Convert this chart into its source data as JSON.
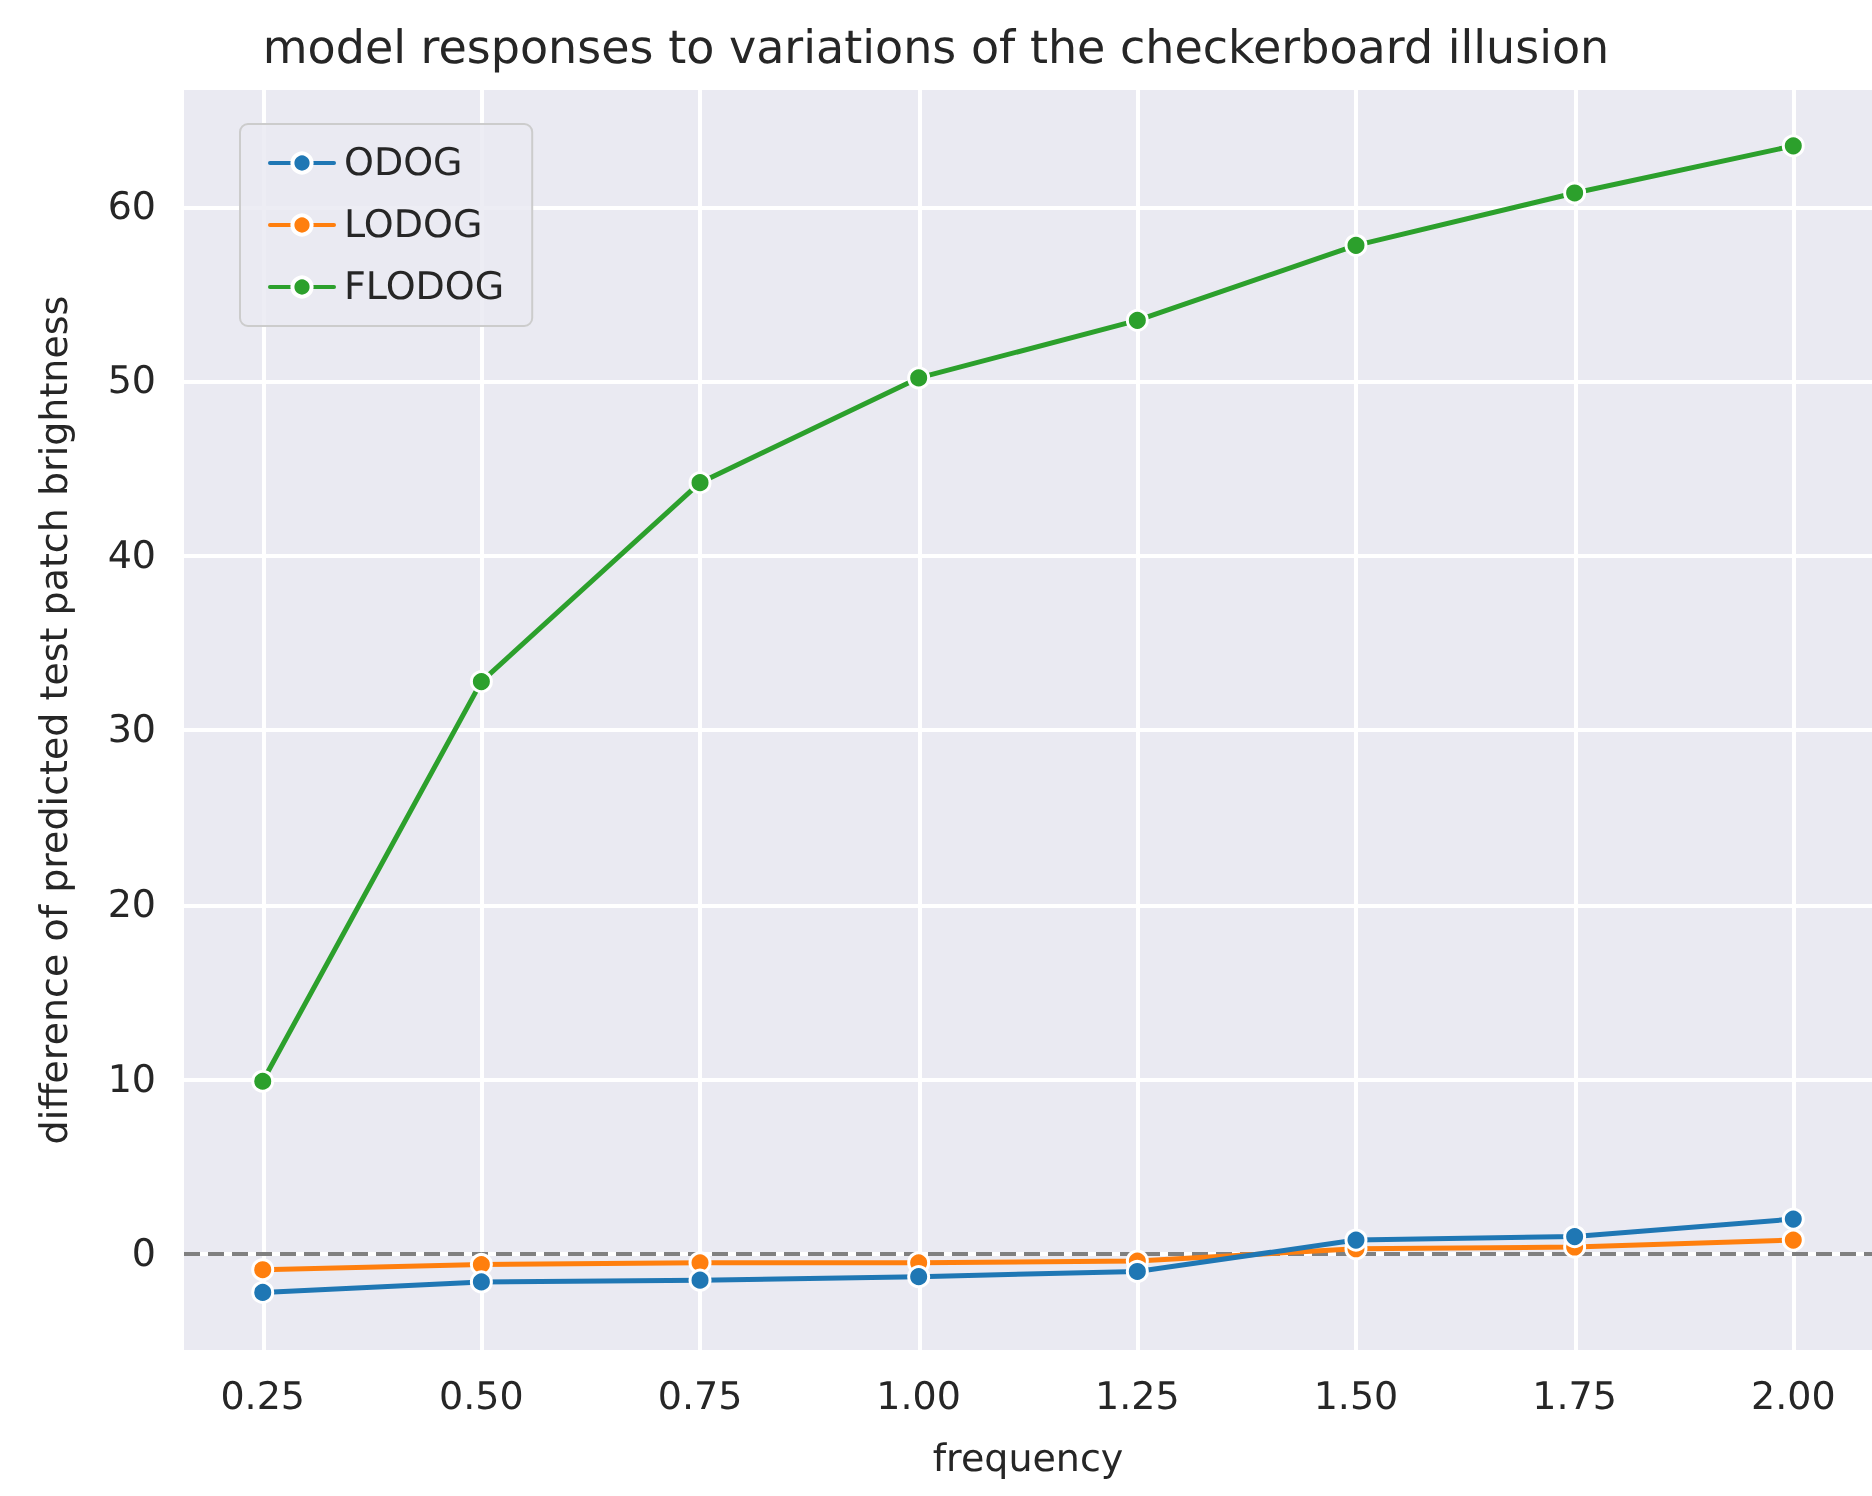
{
  "chart_data": {
    "type": "line",
    "title": "model responses to variations of the checkerboard illusion",
    "xlabel": "frequency",
    "ylabel": "difference of predicted test patch brightness",
    "x": [
      0.25,
      0.5,
      0.75,
      1.0,
      1.25,
      1.5,
      1.75,
      2.0
    ],
    "series": [
      {
        "name": "ODOG",
        "color": "#1f77b4",
        "values": [
          -2.2,
          -1.6,
          -1.5,
          -1.3,
          -1.0,
          0.8,
          1.0,
          2.0
        ]
      },
      {
        "name": "LODOG",
        "color": "#ff7f0e",
        "values": [
          -0.9,
          -0.6,
          -0.5,
          -0.5,
          -0.4,
          0.3,
          0.4,
          0.8
        ]
      },
      {
        "name": "FLODOG",
        "color": "#2ca02c",
        "values": [
          9.9,
          32.8,
          44.2,
          50.2,
          53.5,
          57.8,
          60.8,
          63.5
        ]
      }
    ],
    "xlim": [
      0.16,
      2.09
    ],
    "xticks": [
      {
        "value": 0.25,
        "label": "0.25"
      },
      {
        "value": 0.5,
        "label": "0.50"
      },
      {
        "value": 0.75,
        "label": "0.75"
      },
      {
        "value": 1.0,
        "label": "1.00"
      },
      {
        "value": 1.25,
        "label": "1.25"
      },
      {
        "value": 1.5,
        "label": "1.50"
      },
      {
        "value": 1.75,
        "label": "1.75"
      },
      {
        "value": 2.0,
        "label": "2.00"
      }
    ],
    "ylim": [
      -5.5,
      66.7
    ],
    "yticks": [
      0,
      10,
      20,
      30,
      40,
      50,
      60
    ],
    "ref_lines": [
      {
        "axis": "y",
        "value": 0,
        "color": "#808080",
        "line_style": "dashed"
      }
    ],
    "grid": true,
    "legend": "top left",
    "marker": "circle",
    "line_style": "solid"
  }
}
